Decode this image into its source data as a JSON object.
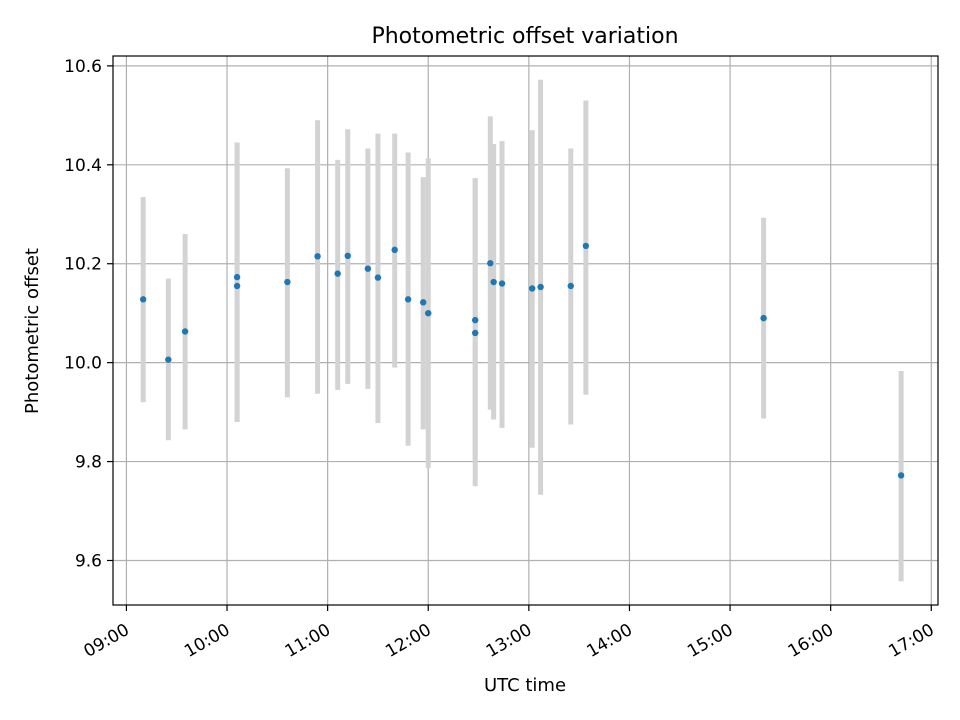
{
  "chart_data": {
    "type": "scatter",
    "title": "Photometric offset variation",
    "xlabel": "UTC time",
    "ylabel": "Photometric offset",
    "xlim": [
      "08:52",
      "17:04"
    ],
    "ylim": [
      9.51,
      10.62
    ],
    "x_ticks": [
      "09:00",
      "10:00",
      "11:00",
      "12:00",
      "13:00",
      "14:00",
      "15:00",
      "16:00",
      "17:00"
    ],
    "y_ticks": [
      9.6,
      9.8,
      10.0,
      10.2,
      10.4,
      10.6
    ],
    "y_tick_labels": [
      "9.6",
      "9.8",
      "10.0",
      "10.2",
      "10.4",
      "10.6"
    ],
    "grid": true,
    "errorbar_color": "#d3d3d3",
    "marker_color": "#1f77b4",
    "series": [
      {
        "points": [
          {
            "x": "09:10",
            "y": 10.128,
            "low": 9.92,
            "high": 10.335
          },
          {
            "x": "09:25",
            "y": 10.006,
            "low": 9.843,
            "high": 10.17
          },
          {
            "x": "09:35",
            "y": 10.063,
            "low": 9.865,
            "high": 10.26
          },
          {
            "x": "10:06",
            "y": 10.173,
            "low": 9.88,
            "high": 10.445
          },
          {
            "x": "10:06",
            "y": 10.155,
            "low": 9.88,
            "high": 10.445
          },
          {
            "x": "10:36",
            "y": 10.163,
            "low": 9.93,
            "high": 10.393
          },
          {
            "x": "10:54",
            "y": 10.215,
            "low": 9.937,
            "high": 10.49
          },
          {
            "x": "11:06",
            "y": 10.18,
            "low": 9.945,
            "high": 10.41
          },
          {
            "x": "11:12",
            "y": 10.216,
            "low": 9.957,
            "high": 10.472
          },
          {
            "x": "11:24",
            "y": 10.19,
            "low": 9.947,
            "high": 10.433
          },
          {
            "x": "11:30",
            "y": 10.172,
            "low": 9.878,
            "high": 10.463
          },
          {
            "x": "11:40",
            "y": 10.228,
            "low": 9.99,
            "high": 10.463
          },
          {
            "x": "11:48",
            "y": 10.128,
            "low": 9.832,
            "high": 10.425
          },
          {
            "x": "11:57",
            "y": 10.122,
            "low": 9.865,
            "high": 10.375
          },
          {
            "x": "12:00",
            "y": 10.1,
            "low": 9.787,
            "high": 10.413
          },
          {
            "x": "12:28",
            "y": 10.086,
            "low": 9.8,
            "high": 10.373
          },
          {
            "x": "12:28",
            "y": 10.06,
            "low": 9.75,
            "high": 10.373
          },
          {
            "x": "12:37",
            "y": 10.201,
            "low": 9.905,
            "high": 10.498
          },
          {
            "x": "12:39",
            "y": 10.163,
            "low": 9.885,
            "high": 10.442
          },
          {
            "x": "12:44",
            "y": 10.16,
            "low": 9.868,
            "high": 10.448
          },
          {
            "x": "13:02",
            "y": 10.15,
            "low": 9.828,
            "high": 10.47
          },
          {
            "x": "13:07",
            "y": 10.153,
            "low": 9.733,
            "high": 10.572
          },
          {
            "x": "13:25",
            "y": 10.155,
            "low": 9.875,
            "high": 10.433
          },
          {
            "x": "13:34",
            "y": 10.236,
            "low": 9.935,
            "high": 10.53
          },
          {
            "x": "15:20",
            "y": 10.09,
            "low": 9.887,
            "high": 10.293
          },
          {
            "x": "16:42",
            "y": 9.772,
            "low": 9.558,
            "high": 9.983
          }
        ]
      }
    ]
  }
}
